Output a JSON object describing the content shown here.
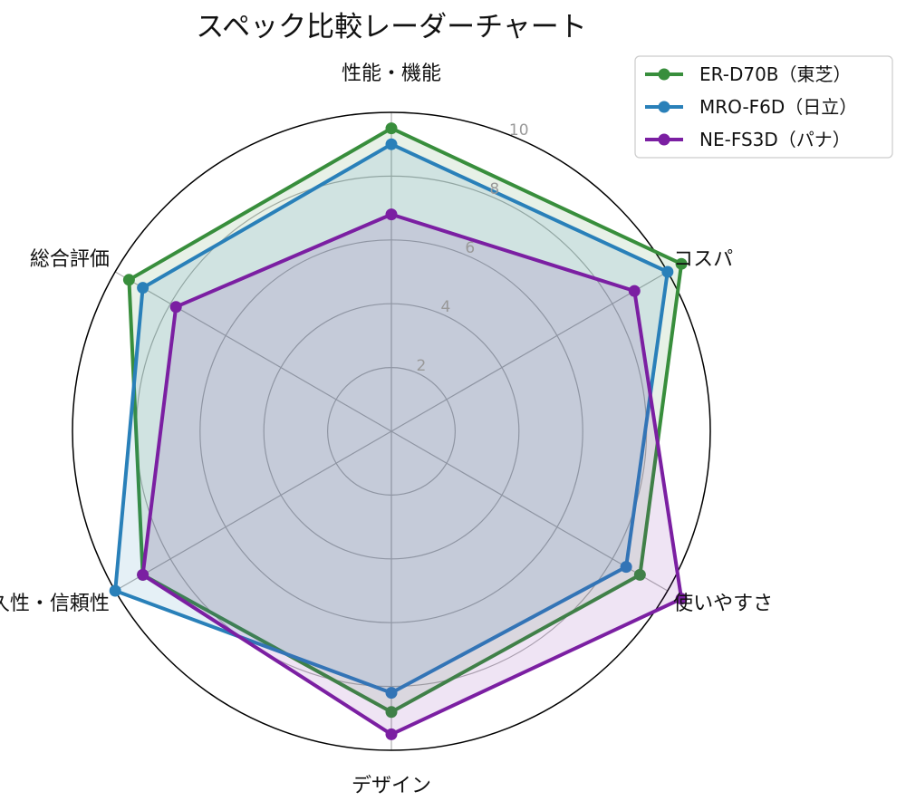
{
  "chart_data": {
    "type": "radar",
    "title": "スペック比較レーダーチャート",
    "axes": [
      "性能・機能",
      "コスパ",
      "使いやすさ",
      "デザイン",
      "耐久性・信頼性",
      "総合評価"
    ],
    "rlim": [
      0,
      10
    ],
    "r_ticks": [
      2,
      4,
      6,
      8,
      10
    ],
    "grid": true,
    "legend_position": "top-right",
    "series": [
      {
        "name": "ER-D70B（東芝）",
        "color": "#388e3c",
        "values": [
          9.5,
          10.5,
          9.0,
          8.8,
          9.0,
          9.5
        ]
      },
      {
        "name": "MRO-F6D（日立）",
        "color": "#2980b9",
        "values": [
          9.0,
          10.0,
          8.5,
          8.2,
          10.0,
          9.0
        ]
      },
      {
        "name": "NE-FS3D（パナ）",
        "color": "#7b1fa2",
        "values": [
          6.8,
          8.8,
          10.5,
          9.5,
          9.0,
          7.8
        ]
      }
    ]
  }
}
